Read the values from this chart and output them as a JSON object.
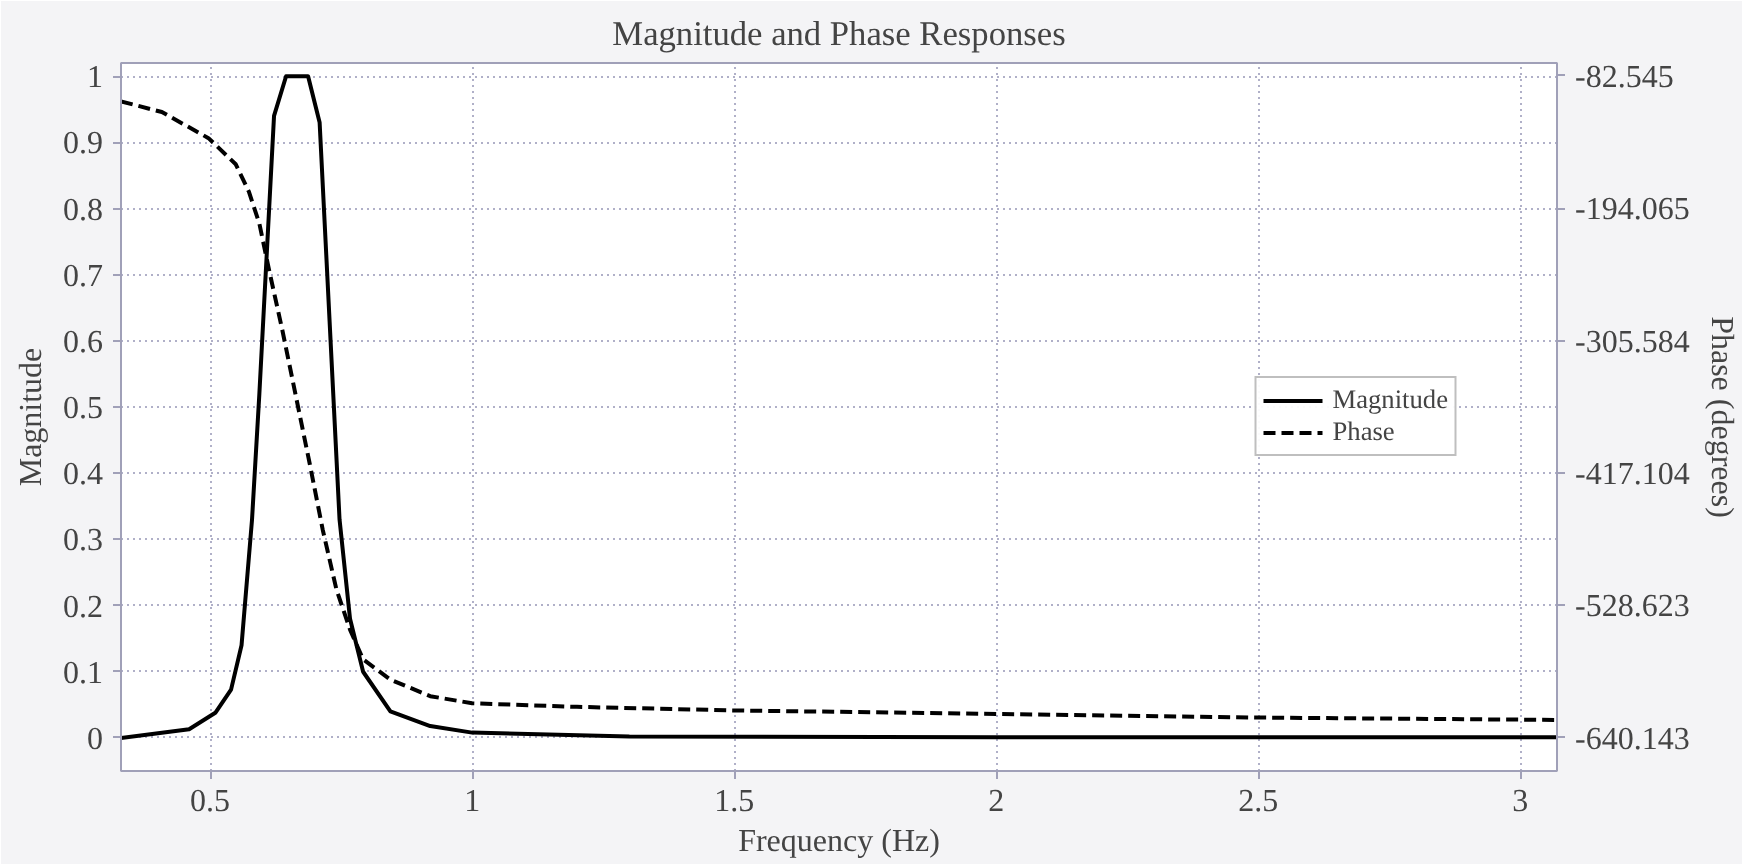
{
  "chart_data": {
    "type": "line",
    "title": "Magnitude and Phase Responses",
    "xlabel": "Frequency (Hz)",
    "ylabel": "Magnitude",
    "y2label": "Phase (degrees)",
    "xlim": [
      0.33,
      3.07
    ],
    "xticks": [
      0.5,
      1,
      1.5,
      2,
      2.5,
      3
    ],
    "ylim": [
      -0.05,
      1.02
    ],
    "yticks": [
      0,
      0.1,
      0.2,
      0.3,
      0.4,
      0.5,
      0.6,
      0.7,
      0.8,
      0.9,
      1
    ],
    "y2lim": [
      -668.02,
      -71.69
    ],
    "y2ticks": [
      -82.545,
      -194.065,
      -305.584,
      -417.104,
      -528.623,
      -640.143
    ],
    "grid": true,
    "legend": "right",
    "marker": "none",
    "series": [
      {
        "name": "Magnitude",
        "color": "#000000",
        "line_style": "solid",
        "x": [
          0.33,
          0.46,
          0.51,
          0.54,
          0.56,
          0.58,
          0.594,
          0.606,
          0.622,
          0.645,
          0.67,
          0.687,
          0.709,
          0.728,
          0.747,
          0.767,
          0.792,
          0.844,
          0.92,
          1.0,
          1.3,
          2.0,
          3.07
        ],
        "values": [
          0,
          0.013,
          0.038,
          0.073,
          0.14,
          0.33,
          0.52,
          0.7,
          0.94,
          1.0,
          1.0,
          1.0,
          0.93,
          0.63,
          0.33,
          0.18,
          0.1,
          0.04,
          0.018,
          0.008,
          0.002,
          0.001,
          0.001
        ]
      },
      {
        "name": "Phase",
        "color": "#000000",
        "line_style": "dashed",
        "axis": "y2",
        "x": [
          0.33,
          0.408,
          0.497,
          0.549,
          0.574,
          0.594,
          0.613,
          0.638,
          0.664,
          0.69,
          0.715,
          0.741,
          0.767,
          0.792,
          0.844,
          0.92,
          1.0,
          1.2,
          1.5,
          2.0,
          2.5,
          3.07
        ],
        "values": [
          -104,
          -113,
          -135,
          -157,
          -180,
          -207,
          -247,
          -297,
          -353,
          -409,
          -465,
          -515,
          -549,
          -574,
          -591,
          -605,
          -611,
          -614,
          -617,
          -620,
          -623,
          -625
        ]
      }
    ]
  }
}
